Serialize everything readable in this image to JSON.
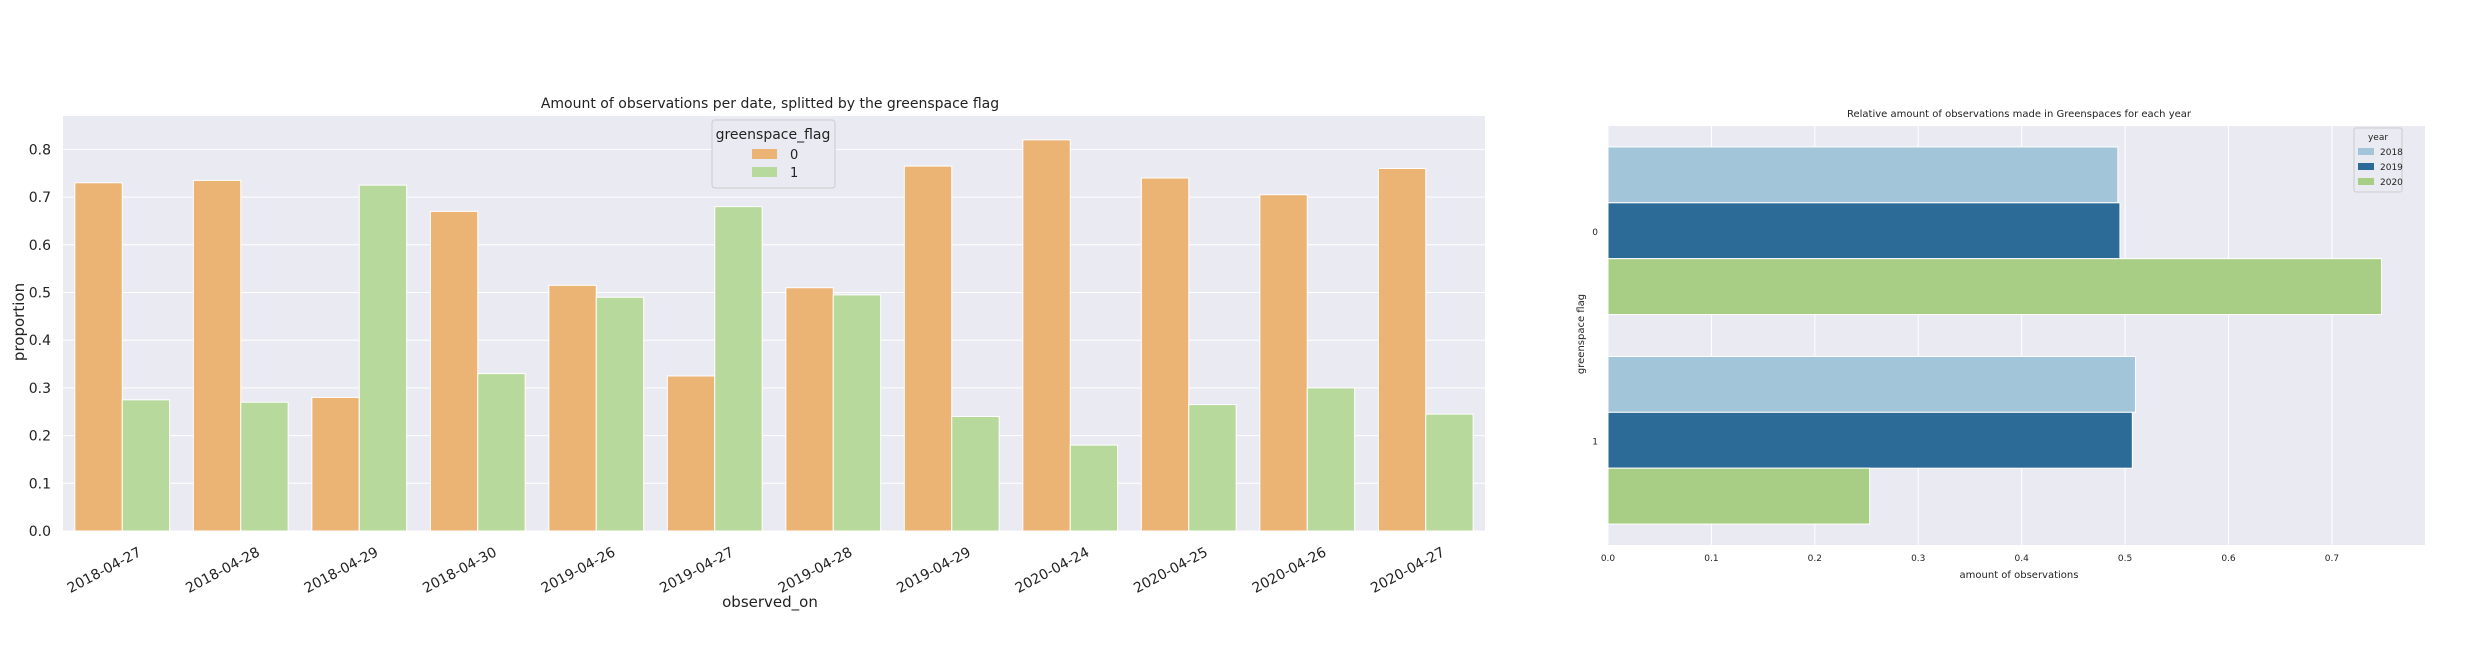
{
  "chart_data": [
    {
      "type": "bar",
      "title": "Amount of observations per date, splitted by the greenspace flag",
      "xlabel": "observed_on",
      "ylabel": "proportion",
      "categories": [
        "2018-04-27",
        "2018-04-28",
        "2018-04-29",
        "2018-04-30",
        "2019-04-26",
        "2019-04-27",
        "2019-04-28",
        "2019-04-29",
        "2020-04-24",
        "2020-04-25",
        "2020-04-26",
        "2020-04-27"
      ],
      "series": [
        {
          "name": "0",
          "color": "#ebb374",
          "values": [
            0.73,
            0.735,
            0.28,
            0.67,
            0.515,
            0.325,
            0.51,
            0.765,
            0.82,
            0.74,
            0.705,
            0.76
          ]
        },
        {
          "name": "1",
          "color": "#b8d99c",
          "values": [
            0.275,
            0.27,
            0.725,
            0.33,
            0.49,
            0.68,
            0.495,
            0.24,
            0.18,
            0.265,
            0.3,
            0.245
          ]
        }
      ],
      "ylim": [
        0,
        0.87
      ],
      "yticks": [
        "0.0",
        "0.1",
        "0.2",
        "0.3",
        "0.4",
        "0.5",
        "0.6",
        "0.7",
        "0.8"
      ],
      "legend": {
        "title": "greenspace_flag",
        "position": "top-center"
      },
      "grid": true,
      "background": "#eaeaf2"
    },
    {
      "type": "bar",
      "orientation": "horizontal",
      "title": "Relative amount of observations made in Greenspaces for each year",
      "xlabel": "amount of observations",
      "ylabel": "greenspace flag",
      "categories": [
        "0",
        "1"
      ],
      "series": [
        {
          "name": "2018",
          "color": "#a2c5d9",
          "values": [
            0.493,
            0.51
          ]
        },
        {
          "name": "2019",
          "color": "#2c6a98",
          "values": [
            0.495,
            0.507
          ]
        },
        {
          "name": "2020",
          "color": "#a8cd85",
          "values": [
            0.748,
            0.253
          ]
        }
      ],
      "xlim": [
        0,
        0.79
      ],
      "xticks": [
        "0.0",
        "0.1",
        "0.2",
        "0.3",
        "0.4",
        "0.5",
        "0.6",
        "0.7"
      ],
      "legend": {
        "title": "year",
        "position": "top-right"
      },
      "grid": true,
      "background": "#eaeaf2"
    }
  ]
}
